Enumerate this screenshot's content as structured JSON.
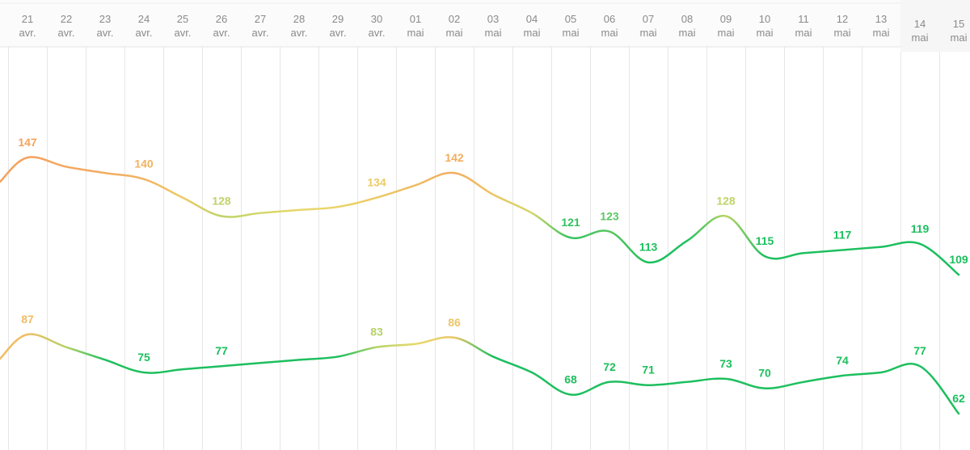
{
  "chart_data": {
    "type": "line",
    "title": "",
    "xlabel": "",
    "ylabel": "",
    "grid": "vertical",
    "x": [
      {
        "day": "21",
        "month": "avr."
      },
      {
        "day": "22",
        "month": "avr."
      },
      {
        "day": "23",
        "month": "avr."
      },
      {
        "day": "24",
        "month": "avr."
      },
      {
        "day": "25",
        "month": "avr."
      },
      {
        "day": "26",
        "month": "avr."
      },
      {
        "day": "27",
        "month": "avr."
      },
      {
        "day": "28",
        "month": "avr."
      },
      {
        "day": "29",
        "month": "avr."
      },
      {
        "day": "30",
        "month": "avr."
      },
      {
        "day": "01",
        "month": "mai"
      },
      {
        "day": "02",
        "month": "mai"
      },
      {
        "day": "03",
        "month": "mai"
      },
      {
        "day": "04",
        "month": "mai"
      },
      {
        "day": "05",
        "month": "mai"
      },
      {
        "day": "06",
        "month": "mai"
      },
      {
        "day": "07",
        "month": "mai"
      },
      {
        "day": "08",
        "month": "mai"
      },
      {
        "day": "09",
        "month": "mai"
      },
      {
        "day": "10",
        "month": "mai"
      },
      {
        "day": "11",
        "month": "mai"
      },
      {
        "day": "12",
        "month": "mai"
      },
      {
        "day": "13",
        "month": "mai"
      },
      {
        "day": "14",
        "month": "mai"
      },
      {
        "day": "15",
        "month": "mai"
      }
    ],
    "series": [
      {
        "values": [
          147,
          144,
          142,
          140,
          134,
          128,
          129,
          130,
          131,
          134,
          138,
          142,
          135,
          129,
          121,
          123,
          113,
          120,
          128,
          115,
          116,
          117,
          118,
          119,
          109
        ],
        "labeled": [
          true,
          false,
          false,
          true,
          false,
          true,
          false,
          false,
          false,
          true,
          false,
          true,
          false,
          false,
          true,
          true,
          true,
          false,
          true,
          true,
          false,
          true,
          false,
          true,
          true
        ]
      },
      {
        "values": [
          87,
          83,
          79,
          75,
          76,
          77,
          78,
          79,
          80,
          83,
          84,
          86,
          80,
          75,
          68,
          72,
          71,
          72,
          73,
          70,
          72,
          74,
          75,
          77,
          62
        ],
        "labeled": [
          true,
          false,
          false,
          true,
          false,
          true,
          false,
          false,
          false,
          true,
          false,
          true,
          false,
          false,
          true,
          true,
          true,
          false,
          true,
          true,
          false,
          true,
          false,
          true,
          true
        ]
      }
    ],
    "color_scale": {
      "high": "#f5a25d",
      "mid": "#e8d86a",
      "low": "#1dbf5e"
    }
  }
}
